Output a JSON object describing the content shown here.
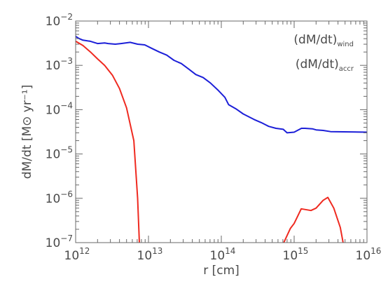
{
  "chart_data": {
    "type": "line",
    "title": "",
    "xlabel": "r [cm]",
    "ylabel": "dM/dt [M⊙ yr⁻¹]",
    "xscale": "log",
    "yscale": "log",
    "xlim": [
      1000000000000.0,
      1e+16
    ],
    "ylim": [
      1e-07,
      0.01
    ],
    "x_ticks": [
      {
        "base": "10",
        "exp": "12",
        "value": 1000000000000.0
      },
      {
        "base": "10",
        "exp": "13",
        "value": 10000000000000.0
      },
      {
        "base": "10",
        "exp": "14",
        "value": 100000000000000.0
      },
      {
        "base": "10",
        "exp": "15",
        "value": 1000000000000000.0
      },
      {
        "base": "10",
        "exp": "16",
        "value": 1e+16
      }
    ],
    "y_ticks": [
      {
        "base": "10",
        "exp": "−7",
        "value": 1e-07
      },
      {
        "base": "10",
        "exp": "−6",
        "value": 1e-06
      },
      {
        "base": "10",
        "exp": "−5",
        "value": 1e-05
      },
      {
        "base": "10",
        "exp": "−4",
        "value": 0.0001
      },
      {
        "base": "10",
        "exp": "−3",
        "value": 0.001
      },
      {
        "base": "10",
        "exp": "−2",
        "value": 0.01
      }
    ],
    "legend_placement": "top-right",
    "grid": false,
    "series": [
      {
        "name": "(dM/dt)",
        "subscript": "wind",
        "color": "#ef2a20",
        "segments": [
          [
            [
              1000000000000.0,
              0.0035
            ],
            [
              1260000000000.0,
              0.0028
            ],
            [
              1600000000000.0,
              0.002
            ],
            [
              2000000000000.0,
              0.0014
            ],
            [
              2500000000000.0,
              0.001
            ],
            [
              3200000000000.0,
              0.0006
            ],
            [
              4000000000000.0,
              0.0003
            ],
            [
              5000000000000.0,
              0.00011
            ],
            [
              6300000000000.0,
              2e-05
            ],
            [
              7100000000000.0,
              1e-06
            ],
            [
              7500000000000.0,
              1e-07
            ]
          ],
          [
            [
              720000000000000.0,
              1e-07
            ],
            [
              890000000000000.0,
              2.1e-07
            ],
            [
              1000000000000000.0,
              2.7e-07
            ],
            [
              1250000000000000.0,
              5.8e-07
            ],
            [
              1700000000000000.0,
              5.3e-07
            ],
            [
              2000000000000000.0,
              6e-07
            ],
            [
              2500000000000000.0,
              9e-07
            ],
            [
              2900000000000000.0,
              1.05e-06
            ],
            [
              3500000000000000.0,
              6e-07
            ],
            [
              4300000000000000.0,
              2.2e-07
            ],
            [
              4700000000000000.0,
              1e-07
            ]
          ]
        ]
      },
      {
        "name": "(dM/dt)",
        "subscript": "accr",
        "color": "#1c1fd8",
        "segments": [
          [
            [
              1000000000000.0,
              0.0045
            ],
            [
              1120000000000.0,
              0.004
            ],
            [
              1260000000000.0,
              0.0037
            ],
            [
              1580000000000.0,
              0.0035
            ],
            [
              2000000000000.0,
              0.0031
            ],
            [
              2500000000000.0,
              0.0032
            ],
            [
              2800000000000.0,
              0.0031
            ],
            [
              3500000000000.0,
              0.003
            ],
            [
              4200000000000.0,
              0.0031
            ],
            [
              5600000000000.0,
              0.0033
            ],
            [
              7100000000000.0,
              0.003
            ],
            [
              8900000000000.0,
              0.0029
            ],
            [
              11200000000000.0,
              0.0024
            ],
            [
              14100000000000.0,
              0.002
            ],
            [
              17800000000000.0,
              0.0017
            ],
            [
              22400000000000.0,
              0.0013
            ],
            [
              28200000000000.0,
              0.0011
            ],
            [
              35500000000000.0,
              0.00083
            ],
            [
              44700000000000.0,
              0.00062
            ],
            [
              56200000000000.0,
              0.00053
            ],
            [
              70800000000000.0,
              0.0004
            ],
            [
              89100000000000.0,
              0.00028
            ],
            [
              112000000000000.0,
              0.00019
            ],
            [
              126000000000000.0,
              0.00013
            ],
            [
              158000000000000.0,
              0.000105
            ],
            [
              200000000000000.0,
              8e-05
            ],
            [
              282000000000000.0,
              6e-05
            ],
            [
              355000000000000.0,
              5.1e-05
            ],
            [
              447000000000000.0,
              4.2e-05
            ],
            [
              562000000000000.0,
              3.8e-05
            ],
            [
              708000000000000.0,
              3.6e-05
            ],
            [
              800000000000000.0,
              3e-05
            ],
            [
              1000000000000000.0,
              3.1e-05
            ],
            [
              1260000000000000.0,
              3.8e-05
            ],
            [
              1410000000000000.0,
              3.8e-05
            ],
            [
              1780000000000000.0,
              3.7e-05
            ],
            [
              2000000000000000.0,
              3.5e-05
            ],
            [
              2500000000000000.0,
              3.4e-05
            ],
            [
              3160000000000000.0,
              3.2e-05
            ],
            [
              1e+16,
              3.1e-05
            ]
          ]
        ]
      }
    ]
  }
}
